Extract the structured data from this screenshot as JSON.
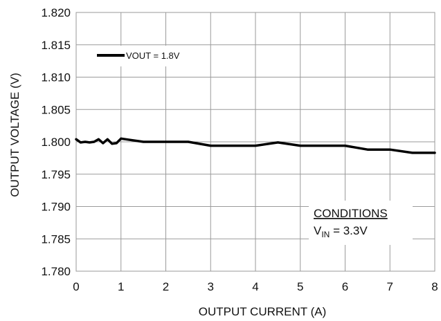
{
  "chart_data": {
    "type": "line",
    "xlabel": "OUTPUT  CURRENT (A)",
    "ylabel": "OUTPUT  VOLTAGE  (V)",
    "xlim": [
      0,
      8
    ],
    "ylim": [
      1.78,
      1.82
    ],
    "x_ticks": [
      0,
      1,
      2,
      3,
      4,
      5,
      6,
      7,
      8
    ],
    "y_ticks": [
      1.78,
      1.785,
      1.79,
      1.795,
      1.8,
      1.805,
      1.81,
      1.815,
      1.82
    ],
    "x_tick_labels": [
      "0",
      "1",
      "2",
      "3",
      "4",
      "5",
      "6",
      "7",
      "8"
    ],
    "y_tick_labels": [
      "1.780",
      "1.785",
      "1.790",
      "1.795",
      "1.800",
      "1.805",
      "1.810",
      "1.815",
      "1.820"
    ],
    "grid": true,
    "legend": "top-left",
    "series": [
      {
        "name": "VOUT = 1.8V",
        "color": "#000000",
        "x": [
          0,
          0.1,
          0.2,
          0.3,
          0.4,
          0.5,
          0.6,
          0.7,
          0.8,
          0.9,
          1.0,
          1.2,
          1.5,
          2.0,
          2.5,
          3.0,
          3.5,
          4.0,
          4.5,
          5.0,
          5.5,
          6.0,
          6.5,
          7.0,
          7.5,
          8.0
        ],
        "y": [
          1.8004,
          1.7999,
          1.8,
          1.7999,
          1.8,
          1.8004,
          1.7998,
          1.8004,
          1.7997,
          1.7998,
          1.8005,
          1.8003,
          1.8,
          1.8,
          1.8,
          1.7994,
          1.7994,
          1.7994,
          1.7999,
          1.7994,
          1.7994,
          1.7994,
          1.7988,
          1.7988,
          1.7983,
          1.7983
        ]
      }
    ],
    "annotation": {
      "heading": "CONDITIONS",
      "v_main": "V",
      "v_sub": "IN",
      "v_rest": " = 3.3V"
    }
  }
}
